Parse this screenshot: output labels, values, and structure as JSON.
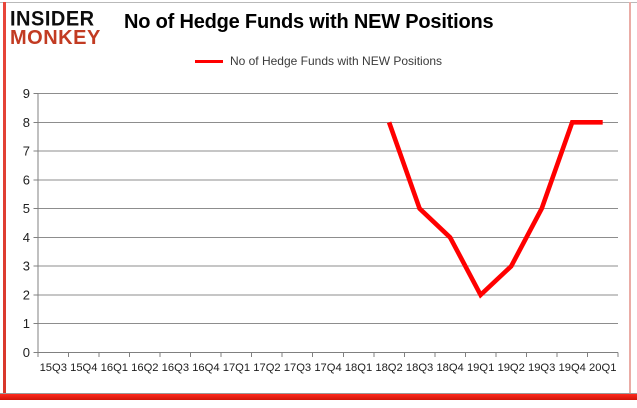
{
  "brand": {
    "line1": "INSIDER",
    "line2": "MONKEY",
    "monkey_color": "#c23b22"
  },
  "header": {
    "title": "No of Hedge Funds with NEW Positions"
  },
  "legend": {
    "label": "No of Hedge Funds with NEW Positions",
    "line_color": "#ff0000"
  },
  "chart_data": {
    "type": "line",
    "title": "No of Hedge Funds with NEW Positions",
    "categories": [
      "15Q3",
      "15Q4",
      "16Q1",
      "16Q2",
      "16Q3",
      "16Q4",
      "17Q1",
      "17Q2",
      "17Q3",
      "17Q4",
      "18Q1",
      "18Q2",
      "18Q3",
      "18Q4",
      "19Q1",
      "19Q2",
      "19Q3",
      "19Q4",
      "20Q1"
    ],
    "series": [
      {
        "name": "No of Hedge Funds with NEW Positions",
        "color": "#ff0000",
        "values": [
          null,
          null,
          null,
          null,
          null,
          null,
          null,
          null,
          null,
          null,
          null,
          8,
          5,
          4,
          2,
          3,
          5,
          8,
          8
        ]
      }
    ],
    "ylim": [
      0,
      9
    ],
    "ytick_interval": 1,
    "yticks": [
      "0",
      "1",
      "2",
      "3",
      "4",
      "5",
      "6",
      "7",
      "8",
      "9"
    ],
    "grid": true,
    "legend_position": "top",
    "xlabel": "",
    "ylabel": ""
  },
  "colors": {
    "grid": "#8d8d8d",
    "axis": "#808080",
    "tick_label": "#202020",
    "frame_red": "#d8372b",
    "frame_pink": "#eaaca6"
  }
}
